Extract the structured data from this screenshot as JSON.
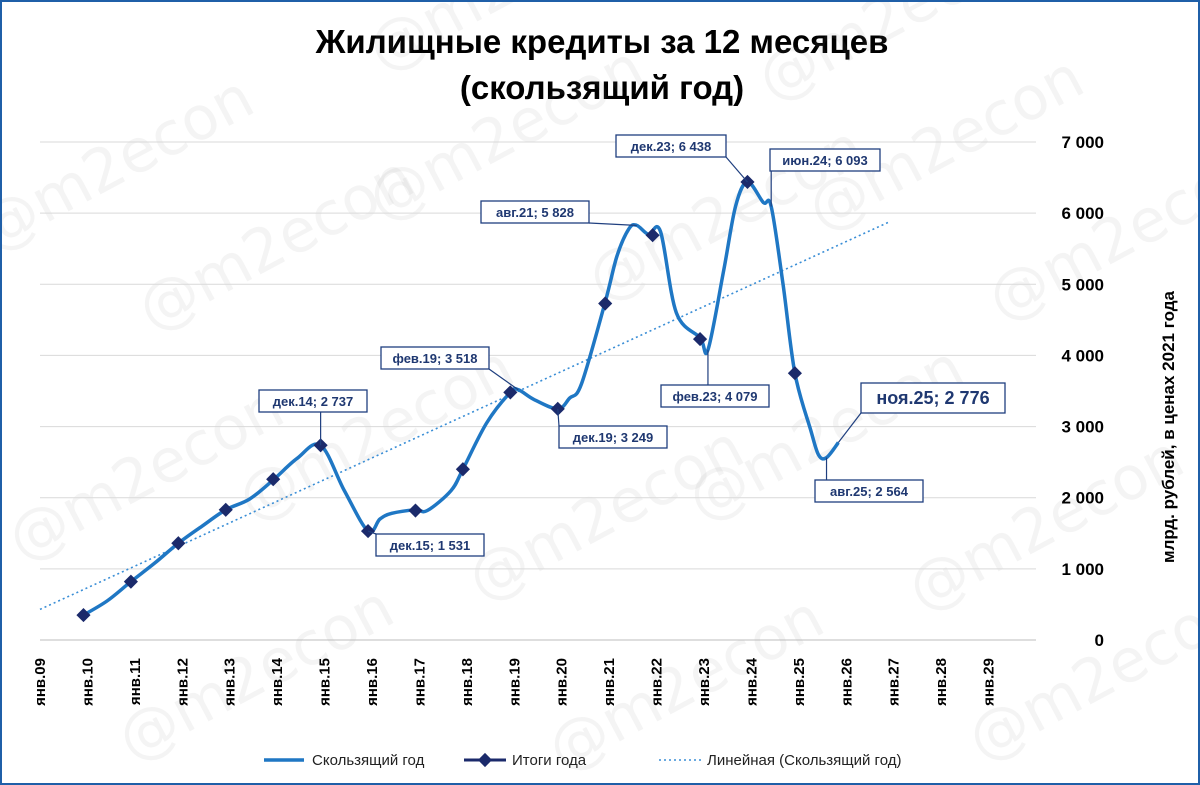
{
  "chart_data": {
    "type": "line",
    "title_line1": "Жилищные кредиты за 12 месяцев",
    "title_line2": "(скользящий год)",
    "ylabel": "млрд. рублей, в ценах 2021 года",
    "ylim": [
      0,
      7000
    ],
    "y_ticks": [
      {
        "v": 0,
        "label": "0"
      },
      {
        "v": 1000,
        "label": "1 000"
      },
      {
        "v": 2000,
        "label": "2 000"
      },
      {
        "v": 3000,
        "label": "3 000"
      },
      {
        "v": 4000,
        "label": "4 000"
      },
      {
        "v": 5000,
        "label": "5 000"
      },
      {
        "v": 6000,
        "label": "6 000"
      },
      {
        "v": 7000,
        "label": "7 000"
      }
    ],
    "x_ticks": [
      {
        "year": 2009,
        "label": "янв.09"
      },
      {
        "year": 2010,
        "label": "янв.10"
      },
      {
        "year": 2011,
        "label": "янв.11"
      },
      {
        "year": 2012,
        "label": "янв.12"
      },
      {
        "year": 2013,
        "label": "янв.13"
      },
      {
        "year": 2014,
        "label": "янв.14"
      },
      {
        "year": 2015,
        "label": "янв.15"
      },
      {
        "year": 2016,
        "label": "янв.16"
      },
      {
        "year": 2017,
        "label": "янв.17"
      },
      {
        "year": 2018,
        "label": "янв.18"
      },
      {
        "year": 2019,
        "label": "янв.19"
      },
      {
        "year": 2020,
        "label": "янв.20"
      },
      {
        "year": 2021,
        "label": "янв.21"
      },
      {
        "year": 2022,
        "label": "янв.22"
      },
      {
        "year": 2023,
        "label": "янв.23"
      },
      {
        "year": 2024,
        "label": "янв.24"
      },
      {
        "year": 2025,
        "label": "янв.25"
      },
      {
        "year": 2026,
        "label": "янв.26"
      },
      {
        "year": 2027,
        "label": "янв.27"
      },
      {
        "year": 2028,
        "label": "янв.28"
      },
      {
        "year": 2029,
        "label": "янв.29"
      }
    ],
    "grid": true,
    "legend_position": "bottom",
    "series": [
      {
        "name": "Скользящий год",
        "color": "#1f77c4",
        "style": "line",
        "points": [
          [
            "2009-12",
            350
          ],
          [
            "2010-06",
            550
          ],
          [
            "2010-12",
            820
          ],
          [
            "2011-06",
            1080
          ],
          [
            "2011-12",
            1360
          ],
          [
            "2012-06",
            1600
          ],
          [
            "2012-12",
            1830
          ],
          [
            "2013-06",
            1980
          ],
          [
            "2013-12",
            2250
          ],
          [
            "2014-06",
            2550
          ],
          [
            "2014-12",
            2737
          ],
          [
            "2015-06",
            2100
          ],
          [
            "2015-12",
            1531
          ],
          [
            "2016-03",
            1700
          ],
          [
            "2016-06",
            1780
          ],
          [
            "2016-12",
            1830
          ],
          [
            "2017-03",
            1820
          ],
          [
            "2017-09",
            2100
          ],
          [
            "2017-12",
            2400
          ],
          [
            "2018-06",
            3050
          ],
          [
            "2018-12",
            3480
          ],
          [
            "2019-02",
            3518
          ],
          [
            "2019-06",
            3380
          ],
          [
            "2019-12",
            3249
          ],
          [
            "2020-03",
            3400
          ],
          [
            "2020-06",
            3600
          ],
          [
            "2020-12",
            4750
          ],
          [
            "2021-03",
            5400
          ],
          [
            "2021-06",
            5780
          ],
          [
            "2021-08",
            5828
          ],
          [
            "2021-11",
            5700
          ],
          [
            "2022-02",
            5740
          ],
          [
            "2022-06",
            4600
          ],
          [
            "2022-12",
            4250
          ],
          [
            "2023-02",
            4079
          ],
          [
            "2023-06",
            5200
          ],
          [
            "2023-09",
            6100
          ],
          [
            "2023-12",
            6438
          ],
          [
            "2024-04",
            6150
          ],
          [
            "2024-06",
            6093
          ],
          [
            "2024-09",
            5000
          ],
          [
            "2024-12",
            3750
          ],
          [
            "2025-04",
            2950
          ],
          [
            "2025-06",
            2600
          ],
          [
            "2025-08",
            2564
          ],
          [
            "2025-11",
            2776
          ]
        ]
      },
      {
        "name": "Итоги года",
        "color": "#1b2a6b",
        "style": "markers",
        "points": [
          [
            "2009-12",
            350
          ],
          [
            "2010-12",
            820
          ],
          [
            "2011-12",
            1360
          ],
          [
            "2012-12",
            1830
          ],
          [
            "2013-12",
            2260
          ],
          [
            "2014-12",
            2737
          ],
          [
            "2015-12",
            1531
          ],
          [
            "2016-12",
            1820
          ],
          [
            "2017-12",
            2400
          ],
          [
            "2018-12",
            3480
          ],
          [
            "2019-12",
            3249
          ],
          [
            "2020-12",
            4730
          ],
          [
            "2021-12",
            5690
          ],
          [
            "2022-12",
            4230
          ],
          [
            "2023-12",
            6438
          ],
          [
            "2024-12",
            3750
          ]
        ]
      },
      {
        "name": "Линейная (Скользящий год)",
        "color": "#3a8ed6",
        "style": "dotted",
        "points": [
          [
            "2009-01",
            430
          ],
          [
            "2026-12",
            5880
          ]
        ]
      }
    ],
    "annotations": [
      {
        "label": "дек.14; 2 737"
      },
      {
        "label": "дек.15; 1 531"
      },
      {
        "label": "фев.19; 3 518"
      },
      {
        "label": "дек.19; 3 249"
      },
      {
        "label": "авг.21; 5 828"
      },
      {
        "label": "дек.23; 6 438"
      },
      {
        "label": "фев.23; 4 079"
      },
      {
        "label": "июн.24; 6 093"
      },
      {
        "label": "авг.25; 2 564"
      },
      {
        "label": "ноя.25; 2 776"
      }
    ],
    "watermark": "@m2econ"
  }
}
